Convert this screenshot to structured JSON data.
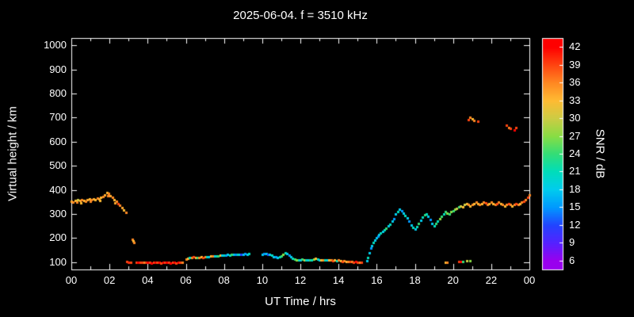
{
  "figure": {
    "background": "#000000",
    "text_color": "#ffffff",
    "frame_color": "#ffffff"
  },
  "chart_data": {
    "type": "scatter",
    "title": "2025-06-04. f = 3510 kHz",
    "xlabel": "UT Time / hrs",
    "ylabel": "Virtual height / km",
    "colorbar_label": "SNR / dB",
    "xlim": [
      0,
      24
    ],
    "ylim": [
      70,
      1030
    ],
    "x_ticks": [
      0,
      2,
      4,
      6,
      8,
      10,
      12,
      14,
      16,
      18,
      20,
      22,
      24
    ],
    "x_tick_labels": [
      "00",
      "02",
      "04",
      "06",
      "08",
      "10",
      "12",
      "14",
      "16",
      "18",
      "20",
      "22",
      "00"
    ],
    "y_ticks": [
      100,
      200,
      300,
      400,
      500,
      600,
      700,
      800,
      900,
      1000
    ],
    "colorbar_ticks": [
      6,
      9,
      12,
      15,
      18,
      21,
      24,
      27,
      30,
      33,
      36,
      39,
      42
    ],
    "colorbar_range": [
      4.5,
      43.5
    ],
    "grid": false,
    "colormap_stops": [
      {
        "value": 6,
        "color": "#9900ee"
      },
      {
        "value": 9,
        "color": "#5522ff"
      },
      {
        "value": 12,
        "color": "#2244ff"
      },
      {
        "value": 15,
        "color": "#0099ff"
      },
      {
        "value": 18,
        "color": "#00ccee"
      },
      {
        "value": 21,
        "color": "#00ddbb"
      },
      {
        "value": 24,
        "color": "#33dd77"
      },
      {
        "value": 27,
        "color": "#88dd44"
      },
      {
        "value": 30,
        "color": "#cccc44"
      },
      {
        "value": 33,
        "color": "#ffbb33"
      },
      {
        "value": 36,
        "color": "#ff8822"
      },
      {
        "value": 39,
        "color": "#ff4411"
      },
      {
        "value": 42,
        "color": "#ff0000"
      }
    ],
    "points": [
      [
        0.0,
        352,
        34
      ],
      [
        0.1,
        348,
        36
      ],
      [
        0.2,
        355,
        33
      ],
      [
        0.3,
        350,
        36
      ],
      [
        0.35,
        358,
        30
      ],
      [
        0.45,
        355,
        34
      ],
      [
        0.5,
        345,
        33
      ],
      [
        0.55,
        360,
        36
      ],
      [
        0.65,
        356,
        33
      ],
      [
        0.75,
        352,
        36
      ],
      [
        0.85,
        358,
        34
      ],
      [
        0.95,
        362,
        33
      ],
      [
        1.0,
        352,
        36
      ],
      [
        1.05,
        358,
        36
      ],
      [
        1.15,
        364,
        34
      ],
      [
        1.25,
        360,
        33
      ],
      [
        1.35,
        366,
        36
      ],
      [
        1.45,
        362,
        34
      ],
      [
        1.5,
        355,
        33
      ],
      [
        1.55,
        368,
        33
      ],
      [
        1.65,
        372,
        36
      ],
      [
        1.75,
        378,
        34
      ],
      [
        1.85,
        388,
        33
      ],
      [
        1.9,
        375,
        36
      ],
      [
        1.95,
        384,
        36
      ],
      [
        2.05,
        375,
        34
      ],
      [
        2.15,
        368,
        36
      ],
      [
        2.25,
        360,
        33
      ],
      [
        2.3,
        345,
        34
      ],
      [
        2.35,
        352,
        36
      ],
      [
        2.45,
        344,
        39
      ],
      [
        2.55,
        336,
        36
      ],
      [
        2.65,
        326,
        34
      ],
      [
        2.75,
        318,
        33
      ],
      [
        2.85,
        308,
        36
      ],
      [
        3.2,
        195,
        36
      ],
      [
        3.25,
        188,
        33
      ],
      [
        3.3,
        182,
        36
      ],
      [
        2.9,
        103,
        39
      ],
      [
        3.0,
        100,
        40
      ],
      [
        3.1,
        100,
        39
      ],
      [
        3.4,
        98,
        39
      ],
      [
        3.5,
        100,
        42
      ],
      [
        3.6,
        99,
        39
      ],
      [
        3.7,
        101,
        39
      ],
      [
        3.8,
        100,
        36
      ],
      [
        3.9,
        99,
        39
      ],
      [
        4.0,
        100,
        42
      ],
      [
        4.1,
        98,
        39
      ],
      [
        4.2,
        97,
        42
      ],
      [
        4.3,
        98,
        39
      ],
      [
        4.4,
        99,
        42
      ],
      [
        4.5,
        100,
        39
      ],
      [
        4.6,
        98,
        42
      ],
      [
        4.7,
        97,
        39
      ],
      [
        4.8,
        98,
        42
      ],
      [
        4.9,
        99,
        39
      ],
      [
        5.0,
        100,
        42
      ],
      [
        5.1,
        98,
        39
      ],
      [
        5.2,
        97,
        42
      ],
      [
        5.3,
        98,
        39
      ],
      [
        5.4,
        98,
        42
      ],
      [
        5.5,
        97,
        39
      ],
      [
        5.6,
        98,
        42
      ],
      [
        5.7,
        98,
        39
      ],
      [
        5.8,
        100,
        36
      ],
      [
        6.0,
        112,
        36
      ],
      [
        6.1,
        115,
        33
      ],
      [
        6.2,
        118,
        21
      ],
      [
        6.3,
        120,
        36
      ],
      [
        6.4,
        121,
        39
      ],
      [
        6.5,
        120,
        33
      ],
      [
        6.6,
        118,
        24
      ],
      [
        6.7,
        120,
        36
      ],
      [
        6.8,
        122,
        33
      ],
      [
        6.9,
        120,
        39
      ],
      [
        7.0,
        122,
        36
      ],
      [
        7.1,
        124,
        21
      ],
      [
        7.2,
        123,
        18
      ],
      [
        7.3,
        125,
        33
      ],
      [
        7.4,
        126,
        36
      ],
      [
        7.5,
        125,
        18
      ],
      [
        7.6,
        127,
        21
      ],
      [
        7.7,
        126,
        24
      ],
      [
        7.8,
        128,
        33
      ],
      [
        7.9,
        129,
        18
      ],
      [
        8.0,
        128,
        21
      ],
      [
        8.1,
        130,
        15
      ],
      [
        8.2,
        131,
        18
      ],
      [
        8.3,
        130,
        21
      ],
      [
        8.4,
        132,
        24
      ],
      [
        8.5,
        133,
        18
      ],
      [
        8.6,
        132,
        15
      ],
      [
        8.7,
        133,
        21
      ],
      [
        8.8,
        134,
        18
      ],
      [
        8.9,
        133,
        12
      ],
      [
        9.0,
        134,
        18
      ],
      [
        9.1,
        135,
        15
      ],
      [
        9.2,
        134,
        18
      ],
      [
        9.3,
        135,
        21
      ],
      [
        10.0,
        134,
        18
      ],
      [
        10.1,
        137,
        15
      ],
      [
        10.2,
        135,
        18
      ],
      [
        10.3,
        133,
        12
      ],
      [
        10.4,
        131,
        18
      ],
      [
        10.5,
        129,
        21
      ],
      [
        10.6,
        124,
        18
      ],
      [
        10.7,
        121,
        15
      ],
      [
        10.8,
        119,
        18
      ],
      [
        10.9,
        121,
        21
      ],
      [
        11.0,
        127,
        24
      ],
      [
        11.1,
        134,
        27
      ],
      [
        11.2,
        139,
        21
      ],
      [
        11.3,
        136,
        18
      ],
      [
        11.4,
        129,
        15
      ],
      [
        11.5,
        121,
        18
      ],
      [
        11.6,
        117,
        21
      ],
      [
        11.7,
        114,
        24
      ],
      [
        11.8,
        111,
        27
      ],
      [
        11.9,
        109,
        21
      ],
      [
        12.0,
        111,
        18
      ],
      [
        12.1,
        113,
        24
      ],
      [
        12.2,
        111,
        30
      ],
      [
        12.3,
        109,
        21
      ],
      [
        12.4,
        111,
        18
      ],
      [
        12.5,
        109,
        24
      ],
      [
        12.6,
        111,
        21
      ],
      [
        12.7,
        113,
        27
      ],
      [
        12.8,
        115,
        33
      ],
      [
        12.9,
        113,
        21
      ],
      [
        13.0,
        111,
        18
      ],
      [
        13.1,
        110,
        33
      ],
      [
        13.2,
        108,
        36
      ],
      [
        13.3,
        110,
        21
      ],
      [
        13.4,
        108,
        18
      ],
      [
        13.5,
        110,
        33
      ],
      [
        13.6,
        108,
        36
      ],
      [
        13.7,
        106,
        39
      ],
      [
        13.8,
        108,
        33
      ],
      [
        13.9,
        106,
        21
      ],
      [
        14.0,
        108,
        36
      ],
      [
        14.1,
        106,
        33
      ],
      [
        14.2,
        104,
        39
      ],
      [
        14.3,
        106,
        36
      ],
      [
        14.4,
        104,
        33
      ],
      [
        14.5,
        102,
        36
      ],
      [
        14.6,
        104,
        39
      ],
      [
        14.7,
        102,
        36
      ],
      [
        14.8,
        100,
        39
      ],
      [
        14.9,
        102,
        42
      ],
      [
        15.0,
        100,
        39
      ],
      [
        15.1,
        100,
        36
      ],
      [
        15.2,
        100,
        39
      ],
      [
        15.5,
        105,
        18
      ],
      [
        15.55,
        118,
        21
      ],
      [
        15.6,
        138,
        18
      ],
      [
        15.7,
        158,
        15
      ],
      [
        15.75,
        170,
        18
      ],
      [
        15.8,
        182,
        21
      ],
      [
        15.9,
        193,
        18
      ],
      [
        16.0,
        201,
        18
      ],
      [
        16.05,
        209,
        15
      ],
      [
        16.1,
        215,
        18
      ],
      [
        16.2,
        221,
        21
      ],
      [
        16.3,
        228,
        18
      ],
      [
        16.4,
        235,
        21
      ],
      [
        16.5,
        241,
        24
      ],
      [
        16.6,
        250,
        18
      ],
      [
        16.7,
        258,
        21
      ],
      [
        16.8,
        269,
        18
      ],
      [
        16.9,
        281,
        15
      ],
      [
        17.0,
        299,
        18
      ],
      [
        17.1,
        311,
        21
      ],
      [
        17.2,
        320,
        18
      ],
      [
        17.3,
        314,
        15
      ],
      [
        17.4,
        304,
        18
      ],
      [
        17.5,
        294,
        21
      ],
      [
        17.6,
        284,
        18
      ],
      [
        17.7,
        269,
        15
      ],
      [
        17.8,
        255,
        18
      ],
      [
        17.9,
        245,
        21
      ],
      [
        18.0,
        239,
        18
      ],
      [
        18.1,
        249,
        21
      ],
      [
        18.2,
        261,
        24
      ],
      [
        18.3,
        274,
        18
      ],
      [
        18.4,
        286,
        21
      ],
      [
        18.5,
        296,
        24
      ],
      [
        18.6,
        301,
        21
      ],
      [
        18.7,
        291,
        18
      ],
      [
        18.8,
        276,
        15
      ],
      [
        18.9,
        261,
        18
      ],
      [
        19.0,
        251,
        21
      ],
      [
        19.1,
        261,
        24
      ],
      [
        19.2,
        271,
        21
      ],
      [
        19.3,
        281,
        27
      ],
      [
        19.4,
        291,
        24
      ],
      [
        19.5,
        301,
        21
      ],
      [
        19.6,
        309,
        24
      ],
      [
        19.7,
        304,
        27
      ],
      [
        19.8,
        299,
        24
      ],
      [
        19.9,
        309,
        27
      ],
      [
        20.0,
        314,
        24
      ],
      [
        19.6,
        100,
        33
      ],
      [
        19.7,
        98,
        36
      ],
      [
        20.3,
        104,
        39
      ],
      [
        20.4,
        102,
        42
      ],
      [
        20.5,
        104,
        24
      ],
      [
        20.7,
        106,
        30
      ],
      [
        20.9,
        105,
        27
      ],
      [
        20.1,
        319,
        27
      ],
      [
        20.2,
        324,
        30
      ],
      [
        20.3,
        329,
        24
      ],
      [
        20.4,
        334,
        30
      ],
      [
        20.5,
        330,
        33
      ],
      [
        20.6,
        339,
        30
      ],
      [
        20.7,
        344,
        33
      ],
      [
        20.8,
        339,
        36
      ],
      [
        20.9,
        334,
        33
      ],
      [
        21.0,
        339,
        36
      ],
      [
        21.1,
        344,
        33
      ],
      [
        21.2,
        349,
        36
      ],
      [
        21.3,
        344,
        33
      ],
      [
        21.4,
        339,
        36
      ],
      [
        21.5,
        344,
        33
      ],
      [
        21.6,
        349,
        36
      ],
      [
        21.7,
        345,
        39
      ],
      [
        21.8,
        340,
        36
      ],
      [
        21.9,
        344,
        33
      ],
      [
        22.0,
        349,
        36
      ],
      [
        22.1,
        344,
        33
      ],
      [
        22.2,
        339,
        36
      ],
      [
        22.3,
        344,
        39
      ],
      [
        22.4,
        349,
        36
      ],
      [
        22.5,
        344,
        33
      ],
      [
        22.6,
        339,
        36
      ],
      [
        22.7,
        334,
        33
      ],
      [
        22.8,
        339,
        36
      ],
      [
        22.9,
        344,
        39
      ],
      [
        23.0,
        339,
        36
      ],
      [
        23.1,
        334,
        33
      ],
      [
        23.2,
        339,
        36
      ],
      [
        23.3,
        344,
        39
      ],
      [
        23.4,
        339,
        36
      ],
      [
        23.5,
        344,
        33
      ],
      [
        23.6,
        349,
        36
      ],
      [
        23.7,
        354,
        39
      ],
      [
        23.8,
        359,
        36
      ],
      [
        23.9,
        369,
        39
      ],
      [
        24.0,
        379,
        36
      ],
      [
        20.8,
        690,
        39
      ],
      [
        20.9,
        700,
        36
      ],
      [
        21.0,
        694,
        33
      ],
      [
        21.1,
        689,
        36
      ],
      [
        21.3,
        684,
        39
      ],
      [
        22.8,
        669,
        39
      ],
      [
        22.9,
        659,
        36
      ],
      [
        23.0,
        654,
        39
      ],
      [
        23.2,
        649,
        42
      ],
      [
        23.3,
        659,
        39
      ]
    ]
  }
}
